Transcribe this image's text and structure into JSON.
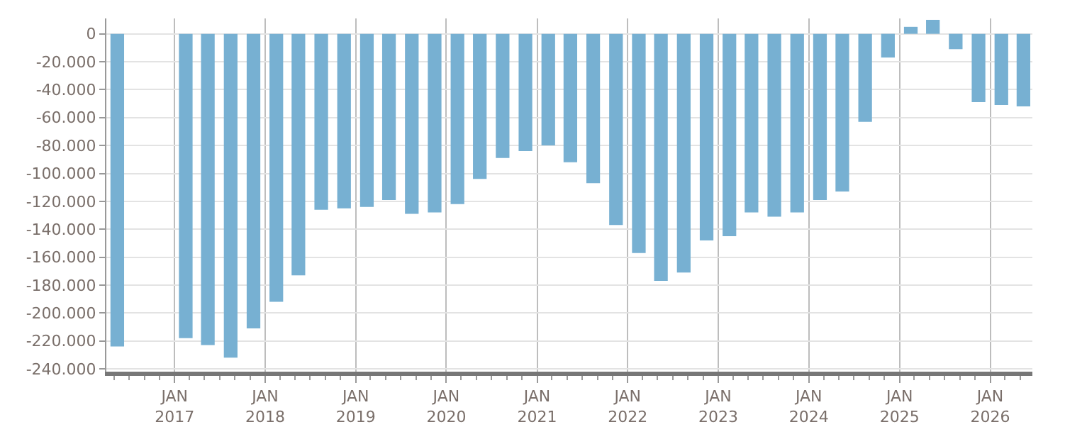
{
  "chart_data": {
    "type": "bar",
    "color": "#77b0d2",
    "x": [
      "2016-05-15",
      "2016-08-15",
      "2016-11-15",
      "2017-02-15",
      "2017-05-15",
      "2017-08-15",
      "2017-11-15",
      "2018-02-15",
      "2018-05-15",
      "2018-08-15",
      "2018-11-15",
      "2019-02-15",
      "2019-05-15",
      "2019-08-15",
      "2019-11-15",
      "2020-02-15",
      "2020-05-15",
      "2020-08-15",
      "2020-11-15",
      "2021-02-15",
      "2021-05-15",
      "2021-08-15",
      "2021-11-15",
      "2022-02-15",
      "2022-05-15",
      "2022-08-15",
      "2022-11-15",
      "2023-02-15",
      "2023-05-15",
      "2023-08-15",
      "2023-11-15",
      "2024-02-15",
      "2024-05-15",
      "2024-08-15",
      "2024-11-15",
      "2025-02-15",
      "2025-05-15",
      "2025-08-15",
      "2025-11-15",
      "2026-02-15",
      "2026-05-15"
    ],
    "values": [
      -224000,
      null,
      null,
      -218000,
      -223000,
      -232000,
      -211000,
      -192000,
      -173000,
      -126000,
      -125000,
      -124000,
      -119000,
      -129000,
      -128000,
      -122000,
      -104000,
      -89000,
      -84000,
      -80000,
      -92000,
      -107000,
      -137000,
      -157000,
      -177000,
      -171000,
      -148000,
      -145000,
      -128000,
      -131000,
      -128000,
      -119000,
      -113000,
      -63000,
      -17000,
      5000,
      10000,
      -11000,
      -49000,
      -51000,
      -52000
    ],
    "ylim": [
      -242000,
      11000
    ],
    "yticks": [
      0,
      {
        "value": -20000,
        "label": "-20.000"
      },
      {
        "value": -40000,
        "label": "-40.000"
      },
      {
        "value": -60000,
        "label": "-60.000"
      },
      {
        "value": -80000,
        "label": "-80.000"
      },
      {
        "value": -100000,
        "label": "-100.000"
      },
      {
        "value": -120000,
        "label": "-120.000"
      },
      {
        "value": -140000,
        "label": "-140.000"
      },
      {
        "value": -160000,
        "label": "-160.000"
      },
      {
        "value": -180000,
        "label": "-180.000"
      },
      {
        "value": -200000,
        "label": "-200.000"
      },
      {
        "value": -220000,
        "label": "-220.000"
      },
      {
        "value": -240000,
        "label": "-240.000"
      }
    ],
    "xlim": [
      "2016-04-01",
      "2026-06-20"
    ],
    "xticks": [
      {
        "value": "2017-01-01",
        "label": "JAN\n2017"
      },
      {
        "value": "2018-01-01",
        "label": "JAN\n2018"
      },
      {
        "value": "2019-01-01",
        "label": "JAN\n2019"
      },
      {
        "value": "2020-01-01",
        "label": "JAN\n2020"
      },
      {
        "value": "2021-01-01",
        "label": "JAN\n2021"
      },
      {
        "value": "2022-01-01",
        "label": "JAN\n2022"
      },
      {
        "value": "2023-01-01",
        "label": "JAN\n2023"
      },
      {
        "value": "2024-01-01",
        "label": "JAN\n2024"
      },
      {
        "value": "2025-01-01",
        "label": "JAN\n2025"
      },
      {
        "value": "2026-01-01",
        "label": "JAN\n2026"
      }
    ],
    "grid": true
  }
}
